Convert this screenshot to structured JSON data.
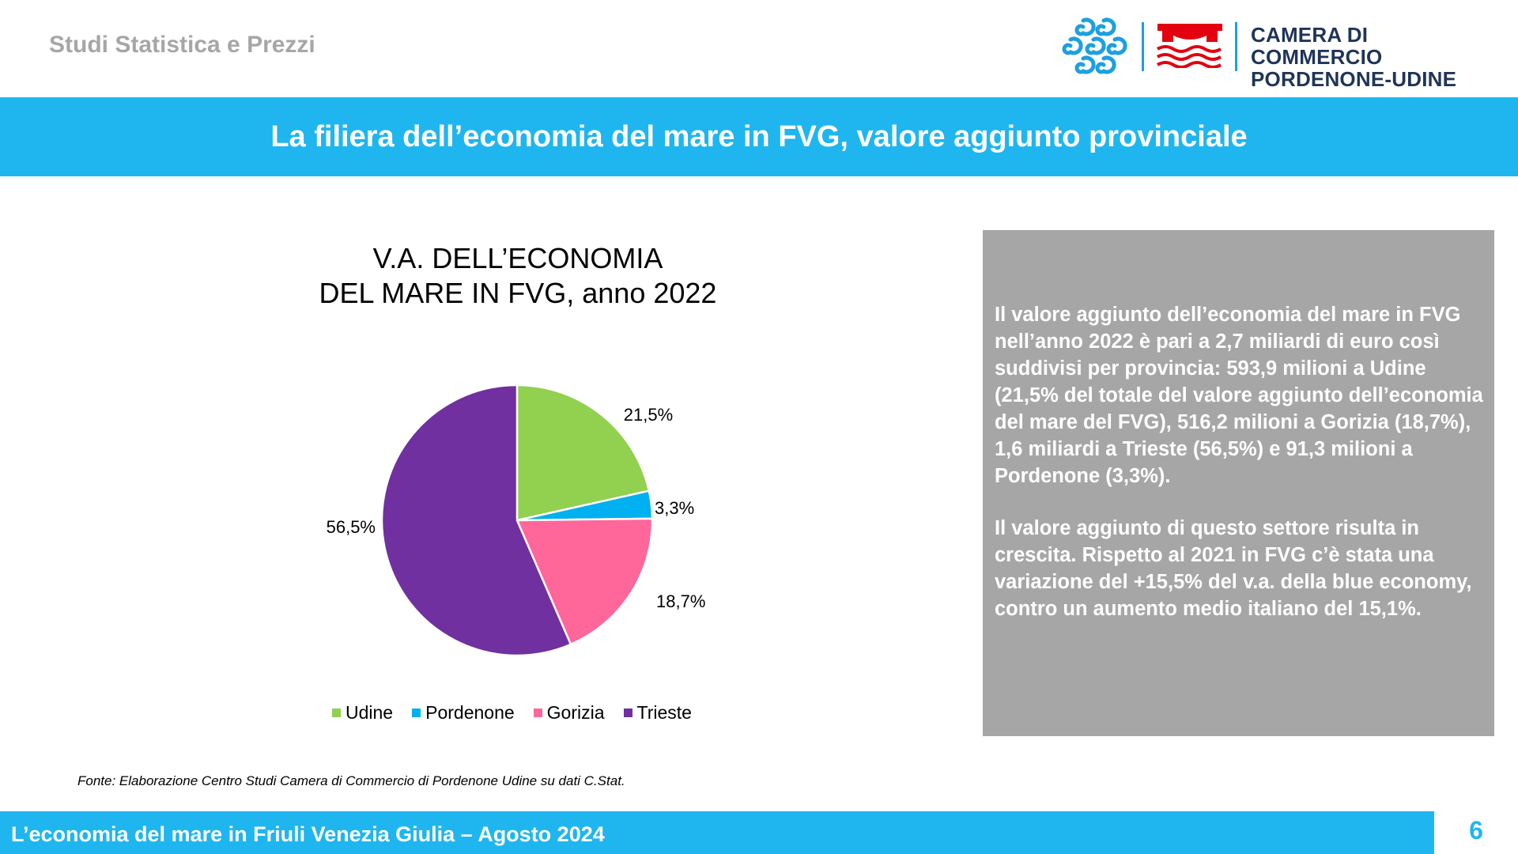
{
  "header": {
    "department": "Studi Statistica e Prezzi",
    "logo": {
      "line1": "CAMERA DI COMMERCIO",
      "line2": "PORDENONE-UDINE",
      "brand_red": "#e3000f",
      "brand_blue": "#1ca0e0",
      "text_color": "#1f3458"
    }
  },
  "title_band": {
    "title": "La filiera dell’economia del mare in FVG, valore aggiunto provinciale",
    "color": "#1fb6ef"
  },
  "chart_data": {
    "type": "pie",
    "title_lines": [
      "V.A. DELL’ECONOMIA",
      "DEL MARE IN FVG, anno 2022"
    ],
    "categories": [
      "Udine",
      "Pordenone",
      "Gorizia",
      "Trieste"
    ],
    "values": [
      21.5,
      3.3,
      18.7,
      56.5
    ],
    "labels": [
      "21,5%",
      "3,3%",
      "18,7%",
      "56,5%"
    ],
    "colors": [
      "#92d050",
      "#00b0f0",
      "#ff6699",
      "#7030a0"
    ],
    "start_angle": "12 o'clock",
    "direction": "clockwise",
    "legend_position": "bottom"
  },
  "source_note": "Fonte: Elaborazione Centro Studi Camera di Commercio di Pordenone Udine su dati C.Stat.",
  "info_box": {
    "paragraph1": "Il valore aggiunto dell’economia del mare in FVG nell’anno 2022 è pari a 2,7 miliardi di euro così suddivisi per provincia: 593,9 milioni a Udine (21,5% del totale del valore aggiunto dell’economia del mare del FVG), 516,2 milioni a Gorizia (18,7%), 1,6 miliardi a Trieste (56,5%) e 91,3 milioni a Pordenone (3,3%).",
    "paragraph2": "Il valore aggiunto di questo settore risulta in crescita. Rispetto al 2021 in FVG c’è stata una variazione del +15,5% del v.a. della blue economy, contro un aumento medio italiano del 15,1%.",
    "background": "#a6a6a6"
  },
  "footer": {
    "text": "L’economia del mare in Friuli Venezia Giulia – Agosto 2024",
    "page_number": "6"
  }
}
